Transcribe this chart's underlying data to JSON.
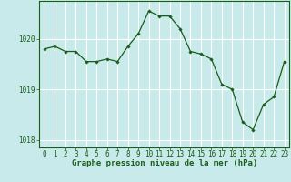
{
  "x": [
    0,
    1,
    2,
    3,
    4,
    5,
    6,
    7,
    8,
    9,
    10,
    11,
    12,
    13,
    14,
    15,
    16,
    17,
    18,
    19,
    20,
    21,
    22,
    23
  ],
  "y": [
    1019.8,
    1019.85,
    1019.75,
    1019.75,
    1019.55,
    1019.55,
    1019.6,
    1019.55,
    1019.85,
    1020.1,
    1020.55,
    1020.45,
    1020.45,
    1020.2,
    1019.75,
    1019.7,
    1019.6,
    1019.1,
    1019.0,
    1018.35,
    1018.2,
    1018.7,
    1018.85,
    1019.55
  ],
  "line_color": "#1a5c1a",
  "marker_color": "#1a5c1a",
  "bg_color": "#c8eaea",
  "grid_color": "#ffffff",
  "axis_color": "#1a5c1a",
  "xlabel": "Graphe pression niveau de la mer (hPa)",
  "yticks": [
    1018,
    1019,
    1020
  ],
  "xticks": [
    0,
    1,
    2,
    3,
    4,
    5,
    6,
    7,
    8,
    9,
    10,
    11,
    12,
    13,
    14,
    15,
    16,
    17,
    18,
    19,
    20,
    21,
    22,
    23
  ],
  "ylim": [
    1017.85,
    1020.75
  ],
  "xlim": [
    -0.5,
    23.5
  ],
  "xlabel_fontsize": 6.5,
  "tick_fontsize": 5.5
}
